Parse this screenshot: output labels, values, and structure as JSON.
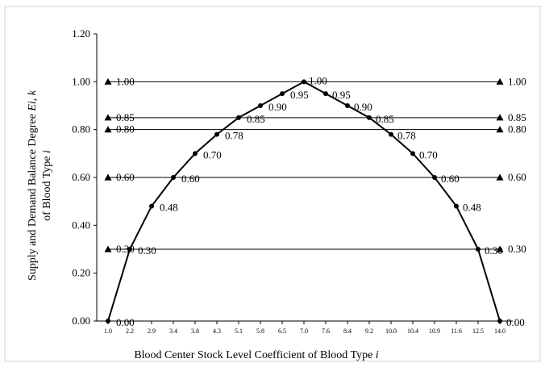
{
  "chart_data": {
    "type": "line",
    "title": "",
    "xlabel": "Blood Center Stock Level Coefficient of Blood Type ",
    "xlabel_italic": "i",
    "ylabel_line1_prefix": "Supply and Demand Balance Degree ",
    "ylabel_line1_italic": "Ei",
    "ylabel_line1_mid": ", ",
    "ylabel_line1_italic2": "k",
    "ylabel_line2_prefix": "of Blood Type ",
    "ylabel_line2_italic": "i",
    "ylim": [
      0,
      1.2
    ],
    "yticks": [
      "0.00",
      "0.20",
      "0.40",
      "0.60",
      "0.80",
      "1.00",
      "1.20"
    ],
    "x": [
      "1.0",
      "2.2",
      "2.9",
      "3.4",
      "3.8",
      "4.3",
      "5.1",
      "5.8",
      "6.5",
      "7.0",
      "7.6",
      "8.4",
      "9.2",
      "10.0",
      "10.4",
      "10.9",
      "11.6",
      "12.5",
      "14.0"
    ],
    "grid": false,
    "series": [
      {
        "marker": "circle",
        "values": [
          0.0,
          0.3,
          0.48,
          0.6,
          0.7,
          0.78,
          0.85,
          0.9,
          0.95,
          1.0,
          0.95,
          0.9,
          0.85,
          0.78,
          0.7,
          0.6,
          0.48,
          0.3,
          0.0
        ],
        "labels": [
          "0.00",
          "0.30",
          "0.48",
          "0.60",
          "0.70",
          "0.78",
          "0.85",
          "0.90",
          "0.95",
          "1.00",
          "0.95",
          "0.90",
          "0.85",
          "0.78",
          "0.70",
          "0.60",
          "0.48",
          "0.30",
          "0.00"
        ]
      }
    ],
    "reference_lines": [
      {
        "value": 1.0,
        "label_left": "1.00",
        "label_right": "1.00",
        "marker": "triangle"
      },
      {
        "value": 0.85,
        "label_left": "0.85",
        "label_right": "0.85",
        "marker": "triangle"
      },
      {
        "value": 0.8,
        "label_left": "0.80",
        "label_right": "0.80",
        "marker": "triangle"
      },
      {
        "value": 0.6,
        "label_left": "0.60",
        "label_right": "0.60",
        "marker": "triangle"
      },
      {
        "value": 0.3,
        "label_left": "0.30",
        "label_right": "0.30",
        "marker": "triangle"
      }
    ],
    "colors": {
      "line": "#000000",
      "frame": "#d0d0d0",
      "background": "#ffffff"
    }
  }
}
